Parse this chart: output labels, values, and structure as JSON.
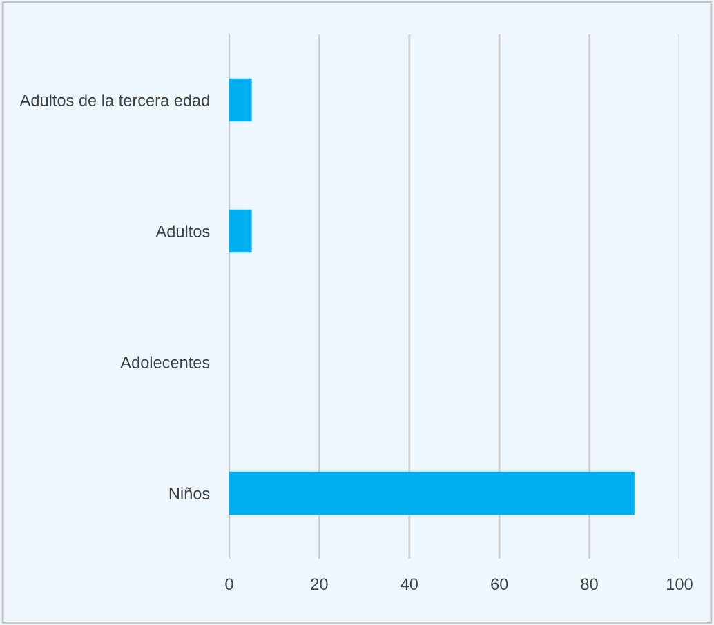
{
  "chart_data": {
    "type": "bar",
    "orientation": "horizontal",
    "categories": [
      "Adultos de la tercera edad",
      "Adultos",
      "Adolecentes",
      "Niños"
    ],
    "values": [
      5,
      5,
      0,
      90
    ],
    "color": "#00b0f0",
    "xlim": [
      0,
      100
    ],
    "xticks": [
      0,
      20,
      40,
      60,
      80,
      100
    ],
    "grid": "x"
  }
}
